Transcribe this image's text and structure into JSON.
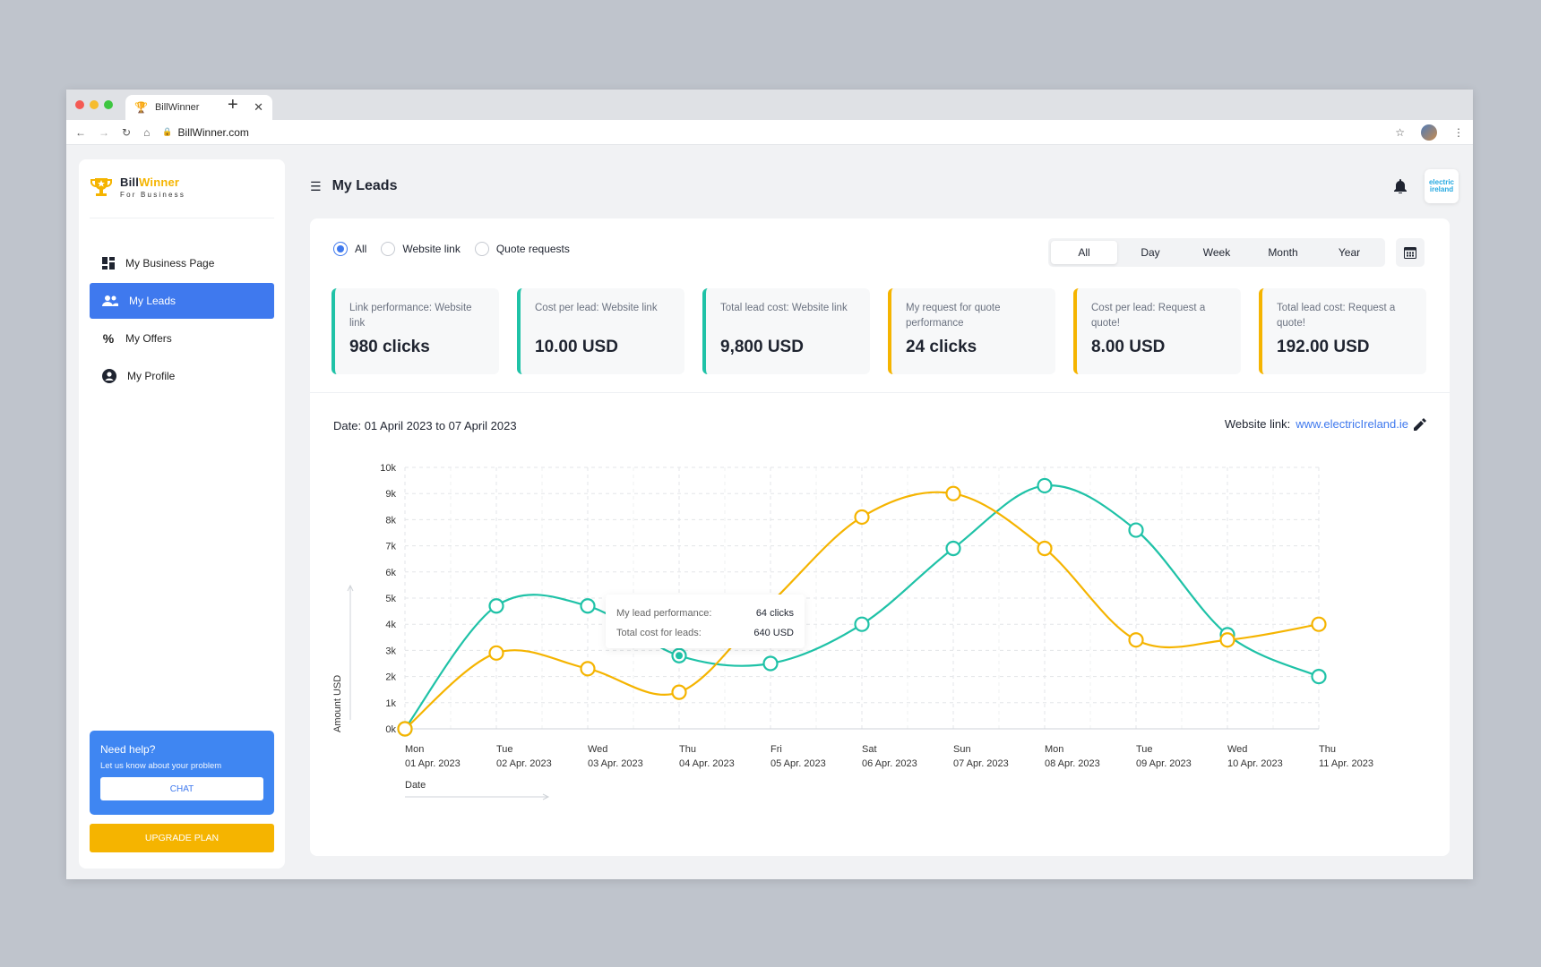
{
  "browser": {
    "tab_title": "BillWinner",
    "url": "BillWinner.com",
    "colors": {
      "red": "#f45a54",
      "yellow": "#f6bc2e",
      "green": "#3dc640"
    }
  },
  "sidebar": {
    "logo": {
      "bill": "Bill",
      "winner": "Winner",
      "tagline": "For Business"
    },
    "items": [
      {
        "label": "My Business Page",
        "icon": "grid-icon",
        "active": false
      },
      {
        "label": "My Leads",
        "icon": "users-icon",
        "active": true
      },
      {
        "label": "My Offers",
        "icon": "percent-icon",
        "active": false
      },
      {
        "label": "My Profile",
        "icon": "user-circle-icon",
        "active": false
      }
    ],
    "help": {
      "title": "Need help?",
      "subtitle": "Let us know about your problem",
      "chat_label": "CHAT"
    },
    "upgrade_label": "UPGRADE PLAN"
  },
  "header": {
    "title": "My Leads",
    "company_logo": "electric ireland"
  },
  "filters": {
    "radios": [
      {
        "label": "All",
        "selected": true
      },
      {
        "label": "Website link",
        "selected": false
      },
      {
        "label": "Quote requests",
        "selected": false
      }
    ],
    "periods": [
      {
        "label": "All",
        "active": true
      },
      {
        "label": "Day",
        "active": false
      },
      {
        "label": "Week",
        "active": false
      },
      {
        "label": "Month",
        "active": false
      },
      {
        "label": "Year",
        "active": false
      }
    ]
  },
  "metrics": [
    {
      "label": "Link performance: Website link",
      "value": "980 clicks",
      "color": "#1fc2a7"
    },
    {
      "label": "Cost per lead: Website link",
      "value": "10.00 USD",
      "color": "#1fc2a7"
    },
    {
      "label": "Total lead cost: Website link",
      "value": "9,800 USD",
      "color": "#1fc2a7"
    },
    {
      "label": "My request for quote performance",
      "value": "24 clicks",
      "color": "#f5b400"
    },
    {
      "label": "Cost per lead: Request a quote!",
      "value": "8.00 USD",
      "color": "#f5b400"
    },
    {
      "label": "Total lead cost: Request a quote!",
      "value": "192.00 USD",
      "color": "#f5b400"
    }
  ],
  "date_range": {
    "label": "Date:",
    "value": "01 April 2023 to 07 April 2023"
  },
  "website_link": {
    "label": "Website link:",
    "value": "www.electricIreland.ie"
  },
  "tooltip": {
    "row1_label": "My lead performance:",
    "row1_value": "64 clicks",
    "row2_label": "Total cost for leads:",
    "row2_value": "640 USD"
  },
  "chart_data": {
    "type": "line",
    "xlabel": "Date",
    "ylabel": "Amount USD",
    "ylim": [
      0,
      10000
    ],
    "y_ticks": [
      "0k",
      "1k",
      "2k",
      "3k",
      "4k",
      "5k",
      "6k",
      "7k",
      "8k",
      "9k",
      "10k"
    ],
    "categories": [
      [
        "Mon",
        "01 Apr. 2023"
      ],
      [
        "Tue",
        "02 Apr. 2023"
      ],
      [
        "Wed",
        "03 Apr. 2023"
      ],
      [
        "Thu",
        "04 Apr. 2023"
      ],
      [
        "Fri",
        "05 Apr. 2023"
      ],
      [
        "Sat",
        "06 Apr. 2023"
      ],
      [
        "Sun",
        "07 Apr. 2023"
      ],
      [
        "Mon",
        "08 Apr. 2023"
      ],
      [
        "Tue",
        "09 Apr. 2023"
      ],
      [
        "Wed",
        "10 Apr. 2023"
      ],
      [
        "Thu",
        "11 Apr. 2023"
      ]
    ],
    "grid": true,
    "series": [
      {
        "color": "#1fc2a7",
        "values": [
          0,
          4700,
          4700,
          2800,
          2500,
          4000,
          6900,
          9300,
          7600,
          3600,
          2000
        ]
      },
      {
        "color": "#f5b400",
        "values": [
          0,
          2900,
          2300,
          1400,
          4800,
          8100,
          9000,
          6900,
          3400,
          3400,
          4000
        ]
      }
    ]
  }
}
